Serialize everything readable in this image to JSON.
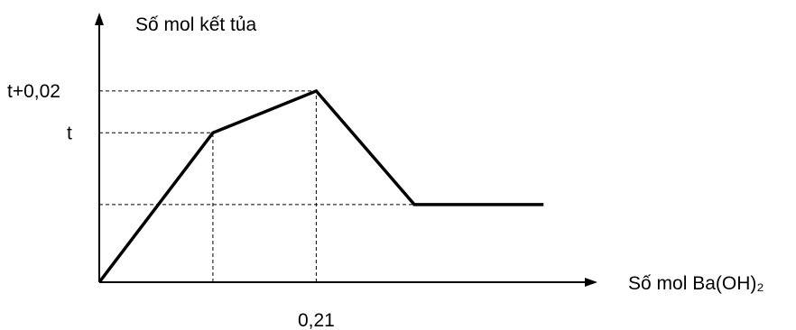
{
  "chart_data": {
    "type": "line",
    "ylabel": "Số mol kết tủa",
    "xlabel": "Số mol Ba(OH)₂",
    "x_tick_labels": [
      "0,21"
    ],
    "y_tick_labels": [
      "t+0,02",
      "t"
    ],
    "series": [
      {
        "points": [
          {
            "x": 0,
            "y": 0
          },
          {
            "x": 0.11,
            "y": 1
          },
          {
            "x": 0.21,
            "y": 1.28
          },
          {
            "x": 0.305,
            "y": 0.52
          },
          {
            "x": 0.43,
            "y": 0.52
          }
        ]
      }
    ],
    "guides": [
      {
        "type": "h",
        "y": 1.28,
        "x_to": 0.21,
        "label": "t+0,02"
      },
      {
        "type": "v",
        "x": 0.21,
        "y_to": 1.28,
        "label": "0,21"
      },
      {
        "type": "h",
        "y": 1,
        "x_to": 0.11,
        "label": "t"
      },
      {
        "type": "v",
        "x": 0.11,
        "y_to": 1
      }
    ],
    "baseline_y": 0.52,
    "xlim": [
      0,
      0.47
    ],
    "ylim": [
      0,
      1.72
    ],
    "grid": false,
    "legend": "none",
    "line_color": "#000000"
  }
}
